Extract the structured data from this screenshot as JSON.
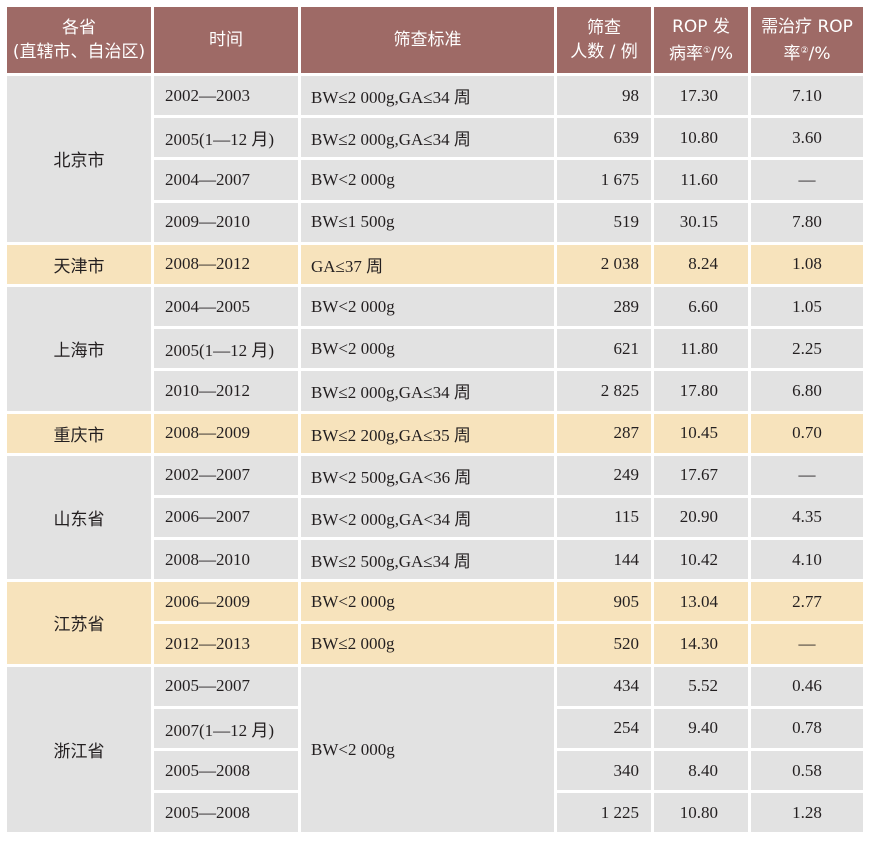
{
  "headers": {
    "province": [
      "各省",
      "(直辖市、自治区)"
    ],
    "period": "时间",
    "criteria": "筛查标准",
    "count": [
      "筛查",
      "人数 / 例"
    ],
    "incidence": [
      "ROP 发",
      "病率",
      "①",
      "/%"
    ],
    "treatment": [
      "需治疗 ROP",
      "率",
      "②",
      "/%"
    ]
  },
  "regions": [
    {
      "province": "北京市",
      "rows": [
        {
          "period": "2002—2003",
          "criteria": "BW≤2 000g,GA≤34 周",
          "count": "98",
          "incidence": "17.30",
          "treatment": "7.10"
        },
        {
          "period": "2005(1—12 月)",
          "criteria": "BW≤2 000g,GA≤34 周",
          "count": "639",
          "incidence": "10.80",
          "treatment": "3.60"
        },
        {
          "period": "2004—2007",
          "criteria": "BW<2 000g",
          "count": "1 675",
          "incidence": "11.60",
          "treatment": "—"
        },
        {
          "period": "2009—2010",
          "criteria": "BW≤1 500g",
          "count": "519",
          "incidence": "30.15",
          "treatment": "7.80"
        }
      ]
    },
    {
      "province": "天津市",
      "rows": [
        {
          "period": "2008—2012",
          "criteria": "GA≤37 周",
          "count": "2 038",
          "incidence": "8.24",
          "treatment": "1.08"
        }
      ]
    },
    {
      "province": "上海市",
      "rows": [
        {
          "period": "2004—2005",
          "criteria": "BW<2 000g",
          "count": "289",
          "incidence": "6.60",
          "treatment": "1.05"
        },
        {
          "period": "2005(1—12 月)",
          "criteria": "BW<2 000g",
          "count": "621",
          "incidence": "11.80",
          "treatment": "2.25"
        },
        {
          "period": "2010—2012",
          "criteria": "BW≤2 000g,GA≤34 周",
          "count": "2 825",
          "incidence": "17.80",
          "treatment": "6.80"
        }
      ]
    },
    {
      "province": "重庆市",
      "rows": [
        {
          "period": "2008—2009",
          "criteria": "BW≤2 200g,GA≤35 周",
          "count": "287",
          "incidence": "10.45",
          "treatment": "0.70"
        }
      ]
    },
    {
      "province": "山东省",
      "rows": [
        {
          "period": "2002—2007",
          "criteria": "BW<2 500g,GA<36 周",
          "count": "249",
          "incidence": "17.67",
          "treatment": "—"
        },
        {
          "period": "2006—2007",
          "criteria": "BW<2 000g,GA<34 周",
          "count": "115",
          "incidence": "20.90",
          "treatment": "4.35"
        },
        {
          "period": "2008—2010",
          "criteria": "BW≤2 500g,GA≤34 周",
          "count": "144",
          "incidence": "10.42",
          "treatment": "4.10"
        }
      ]
    },
    {
      "province": "江苏省",
      "rows": [
        {
          "period": "2006—2009",
          "criteria": "BW<2 000g",
          "count": "905",
          "incidence": "13.04",
          "treatment": "2.77"
        },
        {
          "period": "2012—2013",
          "criteria": "BW≤2 000g",
          "count": "520",
          "incidence": "14.30",
          "treatment": "—"
        }
      ]
    },
    {
      "province": "浙江省",
      "shared_criteria": "BW<2 000g",
      "rows": [
        {
          "period": "2005—2007",
          "count": "434",
          "incidence": "5.52",
          "treatment": "0.46"
        },
        {
          "period": "2007(1—12 月)",
          "count": "254",
          "incidence": "9.40",
          "treatment": "0.78"
        },
        {
          "period": "2005—2008",
          "count": "340",
          "incidence": "8.40",
          "treatment": "0.58"
        },
        {
          "period": "2005—2008",
          "count": "1 225",
          "incidence": "10.80",
          "treatment": "1.28"
        }
      ]
    }
  ],
  "colors": {
    "header_bg": "#9e6a66",
    "header_text": "#ffffff",
    "gray_row": "#e2e2e2",
    "peach_row": "#f7e3bc"
  }
}
